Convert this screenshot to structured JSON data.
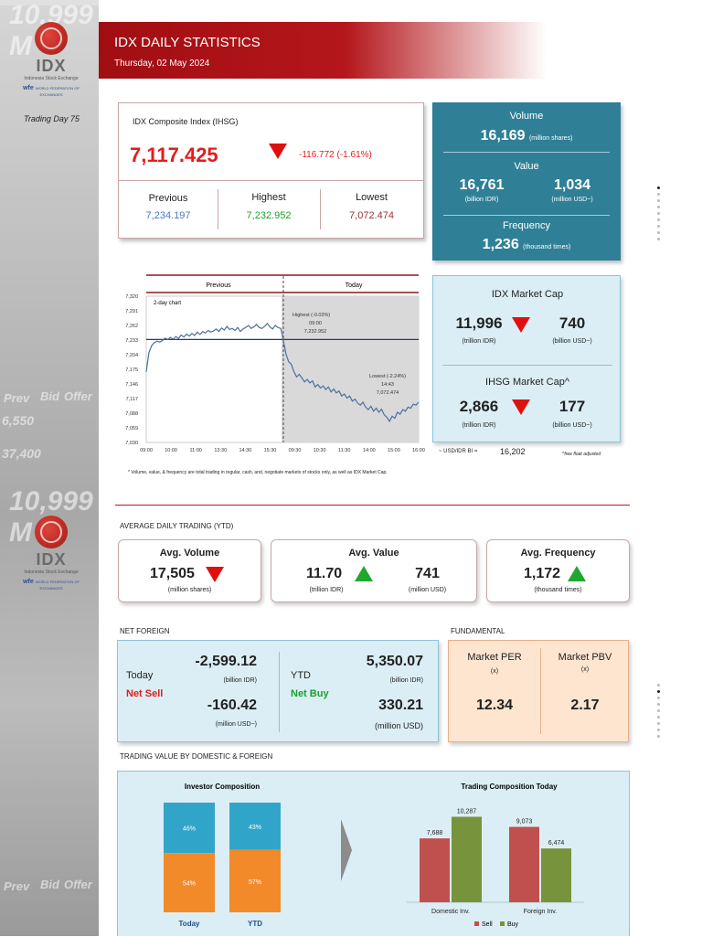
{
  "sidebar": {
    "bg_number": "10,999 M",
    "logo_text": "IDX",
    "logo_sub": "Indonesia Stock Exchange",
    "wfe": "wfe",
    "wfe_sub": "WORLD FEDERATION OF EXCHANGES",
    "bg_words": [
      "Prev",
      "Bid",
      "Offer"
    ],
    "bg_numbers": [
      "37,400",
      "6,550"
    ]
  },
  "header": {
    "title": "IDX DAILY STATISTICS",
    "date": "Thursday, 02 May 2024"
  },
  "trading_day": "Trading Day 75",
  "ihsg": {
    "label": "IDX Composite Index (IHSG)",
    "value": "7,117.425",
    "change": "-116.772 (-1.61%)",
    "previous_label": "Previous",
    "previous": "7,234.197",
    "highest_label": "Highest",
    "highest": "7,232.952",
    "lowest_label": "Lowest",
    "lowest": "7,072.474"
  },
  "stats": {
    "volume_label": "Volume",
    "volume": "16,169",
    "volume_unit": "(million shares)",
    "value_label": "Value",
    "value_idr": "16,761",
    "value_idr_unit": "(billion IDR)",
    "value_usd": "1,034",
    "value_usd_unit": "(million USD~)",
    "frequency_label": "Frequency",
    "frequency": "1,236",
    "frequency_unit": "(thousand times)"
  },
  "chart_data": {
    "type": "line",
    "title": "2-day chart",
    "header_previous": "Previous",
    "header_today": "Today",
    "x_ticks": [
      "09:00",
      "10:00",
      "11:00",
      "13:30",
      "14:30",
      "15:30",
      "09:30",
      "10:30",
      "11:30",
      "14:00",
      "15:00",
      "16:00"
    ],
    "y_ticks": [
      "7,320",
      "7,291",
      "7,262",
      "7,233",
      "7,204",
      "7,175",
      "7,146",
      "7,117",
      "7,088",
      "7,059",
      "7,030"
    ],
    "ylim": [
      7030,
      7320
    ],
    "previous_close": 7234.197,
    "annotations": {
      "highest": [
        "Highest (-0.02%)",
        "09:00",
        "7,232.952"
      ],
      "lowest": [
        "Lowest (-2.24%)",
        "14:43",
        "7,072.474"
      ]
    },
    "series": [
      {
        "values": [
          7170,
          7208,
          7222,
          7228,
          7231,
          7229,
          7232,
          7237,
          7234,
          7238,
          7235,
          7240,
          7236,
          7243,
          7239,
          7245,
          7241,
          7246,
          7242,
          7249,
          7244,
          7250,
          7247,
          7252,
          7249,
          7251,
          7255,
          7250,
          7257,
          7253,
          7260,
          7254,
          7256,
          7252,
          7258,
          7250,
          7255,
          7258,
          7262,
          7256,
          7259,
          7264,
          7258,
          7256,
          7260,
          7266,
          7259,
          7255,
          7262,
          7258,
          7256,
          7234
        ]
      },
      {
        "values": [
          7232,
          7205,
          7190,
          7185,
          7170,
          7160,
          7165,
          7158,
          7150,
          7155,
          7148,
          7152,
          7140,
          7145,
          7138,
          7142,
          7135,
          7140,
          7130,
          7136,
          7128,
          7132,
          7122,
          7126,
          7118,
          7122,
          7112,
          7116,
          7108,
          7104,
          7110,
          7100,
          7095,
          7102,
          7092,
          7098,
          7090,
          7096,
          7085,
          7080,
          7072,
          7082,
          7078,
          7090,
          7086,
          7095,
          7092,
          7100,
          7098,
          7106,
          7104,
          7110
        ]
      }
    ]
  },
  "usd_rate": {
    "label": "~ USD/IDR BI =",
    "value": "16,202",
    "note": "^free float adjusted"
  },
  "market_cap": {
    "idx_label": "IDX Market Cap",
    "idx_idr": "11,996",
    "idx_idr_unit": "(trillion IDR)",
    "idx_usd": "740",
    "idx_usd_unit": "(billion USD~)",
    "ihsg_label": "IHSG Market Cap^",
    "ihsg_idr": "2,866",
    "ihsg_idr_unit": "(trillion IDR)",
    "ihsg_usd": "177",
    "ihsg_usd_unit": "(billion USD~)"
  },
  "footnote": "* Volume, value, & frequency are total trading in regular, cash, and, negotiate markets of stocks only, as well as IDX Market Cap.",
  "avg": {
    "section_label": "AVERAGE DAILY TRADING (YTD)",
    "volume_label": "Avg. Volume",
    "volume": "17,505",
    "volume_unit": "(million shares)",
    "value_label": "Avg. Value",
    "value_idr": "11.70",
    "value_idr_unit": "(trillion IDR)",
    "value_usd": "741",
    "value_usd_unit": "(million USD)",
    "frequency_label": "Avg. Frequency",
    "frequency": "1,172",
    "frequency_unit": "(thousand times)"
  },
  "net_foreign": {
    "section_label": "NET FOREIGN",
    "today_label": "Today",
    "today_status": "Net Sell",
    "today_idr": "-2,599.12",
    "today_idr_unit": "(billion IDR)",
    "today_usd": "-160.42",
    "today_usd_unit": "(million USD~)",
    "ytd_label": "YTD",
    "ytd_status": "Net Buy",
    "ytd_idr": "5,350.07",
    "ytd_idr_unit": "(billion IDR)",
    "ytd_usd": "330.21",
    "ytd_usd_unit": "(million USD)"
  },
  "fundamental": {
    "section_label": "FUNDAMENTAL",
    "per_label": "Market PER",
    "per_unit": "(x)",
    "per": "12.34",
    "pbv_label": "Market PBV",
    "pbv_unit": "(x)",
    "pbv": "2.17"
  },
  "trading_value": {
    "section_label": "TRADING VALUE BY DOMESTIC & FOREIGN",
    "investor_title": "Investor Composition",
    "composition": [
      {
        "label": "Today",
        "top": "46%",
        "bottom": "54%",
        "top_value": 46,
        "bottom_value": 54
      },
      {
        "label": "YTD",
        "top": "43%",
        "bottom": "57%",
        "top_value": 43,
        "bottom_value": 57
      }
    ],
    "trading_title": "Trading Composition Today",
    "groups": [
      {
        "label": "Domestic Inv.",
        "sell": 7688,
        "buy": 10287,
        "sell_label": "7,688",
        "buy_label": "10,287"
      },
      {
        "label": "Foreign Inv.",
        "sell": 9073,
        "buy": 6474,
        "sell_label": "9,073",
        "buy_label": "6,474"
      }
    ],
    "legend_sell": "Sell",
    "legend_buy": "Buy",
    "colors": {
      "sell": "#c0504d",
      "buy": "#77933c",
      "foreign": "#31a5c9",
      "domestic": "#f28a2a"
    }
  }
}
